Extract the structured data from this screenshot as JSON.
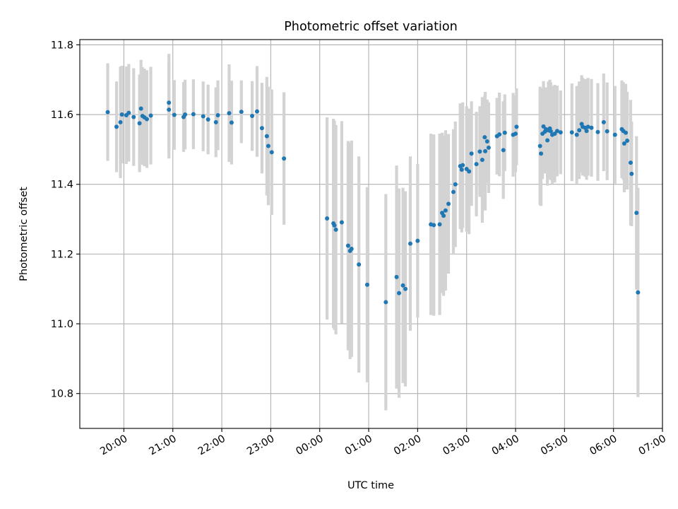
{
  "chart_data": {
    "type": "scatter",
    "title": "Photometric offset variation",
    "xlabel": "UTC time",
    "ylabel": "Photometric offset",
    "x_unit": "hours (UTC, continued past midnight)",
    "xlim": [
      19.1,
      31.0
    ],
    "ylim": [
      10.7,
      11.815
    ],
    "grid": true,
    "x_tick_values": [
      20,
      21,
      22,
      23,
      24,
      25,
      26,
      27,
      28,
      29,
      30,
      31
    ],
    "x_tick_labels": [
      "20:00",
      "21:00",
      "22:00",
      "23:00",
      "00:00",
      "01:00",
      "02:00",
      "03:00",
      "04:00",
      "05:00",
      "06:00",
      "07:00"
    ],
    "y_tick_values": [
      10.8,
      11.0,
      11.2,
      11.4,
      11.6,
      11.8
    ],
    "y_tick_labels": [
      "10.8",
      "11.0",
      "11.2",
      "11.4",
      "11.6",
      "11.8"
    ],
    "colors": {
      "point": "#1f77b4",
      "errorbar": "#d3d3d3",
      "grid": "#b0b0b0"
    },
    "series": [
      {
        "x": [
          19.67,
          19.85,
          19.93,
          19.96,
          20.05,
          20.1,
          20.2,
          20.32,
          20.35,
          20.38,
          20.42,
          20.47,
          20.55,
          20.92,
          20.92,
          21.03,
          21.22,
          21.25,
          21.42,
          21.62,
          21.72,
          21.88,
          21.92,
          22.15,
          22.2,
          22.4,
          22.62,
          22.72,
          22.82,
          22.92,
          22.95,
          23.02,
          23.27,
          24.15,
          24.28,
          24.3,
          24.33,
          24.45,
          24.58,
          24.62,
          24.65,
          24.8,
          24.97,
          25.35,
          25.57,
          25.62,
          25.7,
          25.75,
          25.85,
          26.0,
          26.27,
          26.33,
          26.45,
          26.5,
          26.53,
          26.57,
          26.63,
          26.73,
          26.77,
          26.87,
          26.9,
          26.92,
          27.0,
          27.05,
          27.1,
          27.2,
          27.27,
          27.32,
          27.37,
          27.38,
          27.42,
          27.45,
          27.62,
          27.67,
          27.75,
          27.78,
          27.95,
          28.0,
          28.02,
          28.5,
          28.52,
          28.55,
          28.57,
          28.6,
          28.62,
          28.65,
          28.67,
          28.7,
          28.72,
          28.75,
          28.8,
          28.85,
          28.92,
          29.15,
          29.25,
          29.3,
          29.35,
          29.37,
          29.42,
          29.45,
          29.48,
          29.55,
          29.68,
          29.8,
          29.87,
          30.03,
          30.17,
          30.2,
          30.22,
          30.25,
          30.28,
          30.35,
          30.37,
          30.47,
          30.5
        ],
        "y": [
          11.607,
          11.565,
          11.578,
          11.6,
          11.598,
          11.605,
          11.593,
          11.575,
          11.617,
          11.596,
          11.592,
          11.587,
          11.597,
          11.614,
          11.634,
          11.599,
          11.593,
          11.6,
          11.601,
          11.595,
          11.586,
          11.578,
          11.598,
          11.604,
          11.577,
          11.608,
          11.596,
          11.609,
          11.561,
          11.538,
          11.51,
          11.492,
          11.474,
          11.302,
          11.288,
          11.282,
          11.27,
          11.291,
          11.224,
          11.209,
          11.215,
          11.17,
          11.112,
          11.062,
          11.134,
          11.088,
          11.11,
          11.1,
          11.23,
          11.238,
          11.285,
          11.283,
          11.285,
          11.318,
          11.31,
          11.325,
          11.344,
          11.378,
          11.4,
          11.452,
          11.442,
          11.455,
          11.444,
          11.437,
          11.488,
          11.458,
          11.494,
          11.47,
          11.535,
          11.495,
          11.523,
          11.505,
          11.538,
          11.543,
          11.498,
          11.548,
          11.542,
          11.545,
          11.565,
          11.51,
          11.488,
          11.545,
          11.566,
          11.551,
          11.558,
          11.526,
          11.555,
          11.56,
          11.552,
          11.542,
          11.545,
          11.553,
          11.549,
          11.549,
          11.542,
          11.555,
          11.573,
          11.565,
          11.562,
          11.553,
          11.565,
          11.562,
          11.55,
          11.578,
          11.552,
          11.542,
          11.558,
          11.553,
          11.517,
          11.548,
          11.525,
          11.462,
          11.43,
          11.318,
          11.09
        ],
        "yerr": [
          0.14,
          0.13,
          0.16,
          0.14,
          0.14,
          0.14,
          0.14,
          0.14,
          0.14,
          0.14,
          0.14,
          0.14,
          0.14,
          0.14,
          0.14,
          0.1,
          0.1,
          0.1,
          0.1,
          0.1,
          0.1,
          0.1,
          0.1,
          0.14,
          0.12,
          0.09,
          0.1,
          0.13,
          0.13,
          0.17,
          0.17,
          0.18,
          0.19,
          0.29,
          0.3,
          0.3,
          0.3,
          0.29,
          0.3,
          0.31,
          0.31,
          0.31,
          0.28,
          0.31,
          0.32,
          0.3,
          0.28,
          0.28,
          0.25,
          0.22,
          0.26,
          0.26,
          0.26,
          0.23,
          0.23,
          0.23,
          0.2,
          0.18,
          0.18,
          0.18,
          0.18,
          0.18,
          0.18,
          0.18,
          0.15,
          0.15,
          0.13,
          0.18,
          0.12,
          0.17,
          0.12,
          0.13,
          0.11,
          0.12,
          0.14,
          0.11,
          0.12,
          0.11,
          0.11,
          0.17,
          0.15,
          0.13,
          0.13,
          0.12,
          0.12,
          0.13,
          0.14,
          0.14,
          0.14,
          0.14,
          0.14,
          0.13,
          0.12,
          0.14,
          0.14,
          0.14,
          0.14,
          0.14,
          0.14,
          0.14,
          0.14,
          0.14,
          0.14,
          0.14,
          0.14,
          0.14,
          0.14,
          0.14,
          0.14,
          0.14,
          0.14,
          0.18,
          0.15,
          0.22,
          0.3
        ]
      }
    ]
  }
}
